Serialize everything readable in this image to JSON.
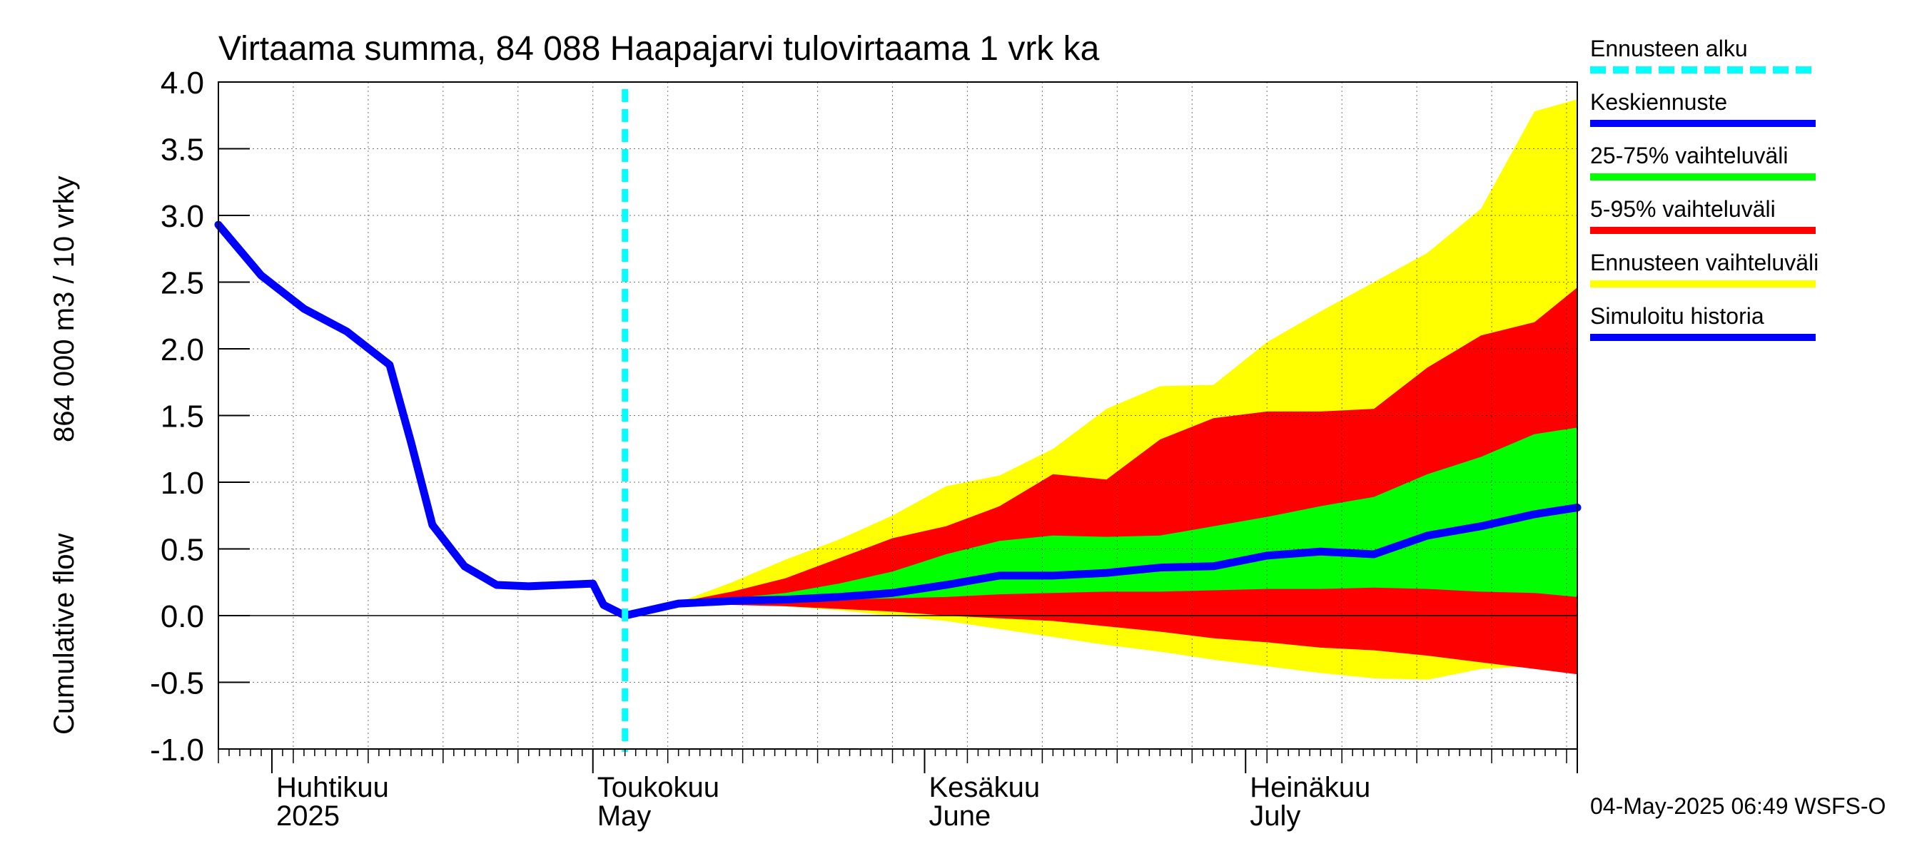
{
  "chart_data": {
    "type": "area",
    "title": "Virtaama summa, 84 088 Haapajarvi tulovirtaama 1 vrk ka",
    "ylabel_line1": "864 000 m3 / 10 vrky",
    "ylabel_line2": "Cumulative flow",
    "ylim": [
      -1.0,
      4.0
    ],
    "y_ticks": [
      "4.0",
      "3.5",
      "3.0",
      "2.5",
      "2.0",
      "1.5",
      "1.0",
      "0.5",
      "0.0",
      "-0.5",
      "-1.0"
    ],
    "xlim": [
      "2025-03-27",
      "2025-08-01"
    ],
    "month_labels": [
      {
        "date": "2025-04-01",
        "line1": "Huhtikuu",
        "line2": "2025"
      },
      {
        "date": "2025-05-01",
        "line1": "Toukokuu",
        "line2": "May"
      },
      {
        "date": "2025-06-01",
        "line1": "Kesäkuu",
        "line2": "June"
      },
      {
        "date": "2025-07-01",
        "line1": "Heinäkuu",
        "line2": "July"
      }
    ],
    "forecast_start": "2025-05-04",
    "grid": true,
    "legend_position": "right",
    "series": [
      {
        "name": "Ennusteen vaihteluväli",
        "kind": "band",
        "color": "#ffff00",
        "x": [
          "2025-05-04",
          "2025-05-09",
          "2025-05-14",
          "2025-05-19",
          "2025-05-24",
          "2025-05-29",
          "2025-06-03",
          "2025-06-08",
          "2025-06-13",
          "2025-06-18",
          "2025-06-23",
          "2025-06-28",
          "2025-07-03",
          "2025-07-08",
          "2025-07-13",
          "2025-07-18",
          "2025-07-23",
          "2025-07-28",
          "2025-08-01"
        ],
        "lower": [
          0.0,
          0.08,
          0.09,
          0.07,
          0.04,
          0.0,
          -0.04,
          -0.1,
          -0.16,
          -0.22,
          -0.27,
          -0.33,
          -0.38,
          -0.43,
          -0.47,
          -0.48,
          -0.4,
          -0.38,
          -0.41
        ],
        "upper": [
          0.0,
          0.1,
          0.25,
          0.42,
          0.57,
          0.75,
          0.97,
          1.05,
          1.25,
          1.55,
          1.72,
          1.73,
          2.05,
          2.28,
          2.5,
          2.72,
          3.05,
          3.78,
          3.87
        ]
      },
      {
        "name": "5-95% vaihteluväli",
        "kind": "band",
        "color": "#ff0000",
        "x": [
          "2025-05-04",
          "2025-05-09",
          "2025-05-14",
          "2025-05-19",
          "2025-05-24",
          "2025-05-29",
          "2025-06-03",
          "2025-06-08",
          "2025-06-13",
          "2025-06-18",
          "2025-06-23",
          "2025-06-28",
          "2025-07-03",
          "2025-07-08",
          "2025-07-13",
          "2025-07-18",
          "2025-07-23",
          "2025-07-28",
          "2025-08-01"
        ],
        "lower": [
          0.0,
          0.08,
          0.08,
          0.07,
          0.05,
          0.03,
          0.0,
          -0.02,
          -0.04,
          -0.08,
          -0.12,
          -0.17,
          -0.2,
          -0.24,
          -0.26,
          -0.3,
          -0.35,
          -0.4,
          -0.44
        ],
        "upper": [
          0.0,
          0.1,
          0.18,
          0.28,
          0.43,
          0.58,
          0.67,
          0.82,
          1.06,
          1.02,
          1.32,
          1.48,
          1.53,
          1.53,
          1.55,
          1.86,
          2.1,
          2.2,
          2.46
        ]
      },
      {
        "name": "25-75% vaihteluväli",
        "kind": "band",
        "color": "#00ff00",
        "x": [
          "2025-05-04",
          "2025-05-09",
          "2025-05-14",
          "2025-05-19",
          "2025-05-24",
          "2025-05-29",
          "2025-06-03",
          "2025-06-08",
          "2025-06-13",
          "2025-06-18",
          "2025-06-23",
          "2025-06-28",
          "2025-07-03",
          "2025-07-08",
          "2025-07-13",
          "2025-07-18",
          "2025-07-23",
          "2025-07-28",
          "2025-08-01"
        ],
        "lower": [
          0.0,
          0.09,
          0.1,
          0.11,
          0.12,
          0.13,
          0.14,
          0.16,
          0.17,
          0.18,
          0.18,
          0.19,
          0.2,
          0.2,
          0.21,
          0.2,
          0.18,
          0.17,
          0.14
        ],
        "upper": [
          0.0,
          0.1,
          0.13,
          0.17,
          0.24,
          0.33,
          0.46,
          0.56,
          0.6,
          0.59,
          0.6,
          0.67,
          0.74,
          0.82,
          0.89,
          1.06,
          1.19,
          1.36,
          1.41
        ]
      },
      {
        "name": "Keskiennuste",
        "kind": "line",
        "color": "#0000ff",
        "x": [
          "2025-05-04",
          "2025-05-09",
          "2025-05-14",
          "2025-05-19",
          "2025-05-24",
          "2025-05-29",
          "2025-06-03",
          "2025-06-08",
          "2025-06-13",
          "2025-06-18",
          "2025-06-23",
          "2025-06-28",
          "2025-07-03",
          "2025-07-08",
          "2025-07-13",
          "2025-07-18",
          "2025-07-23",
          "2025-07-28",
          "2025-08-01"
        ],
        "values": [
          0.0,
          0.09,
          0.11,
          0.12,
          0.14,
          0.17,
          0.23,
          0.3,
          0.3,
          0.32,
          0.36,
          0.37,
          0.45,
          0.48,
          0.46,
          0.6,
          0.67,
          0.76,
          0.81
        ]
      },
      {
        "name": "Simuloitu historia",
        "kind": "line",
        "color": "#0000ff",
        "x": [
          "2025-03-27",
          "2025-03-31",
          "2025-04-04",
          "2025-04-08",
          "2025-04-12",
          "2025-04-14",
          "2025-04-16",
          "2025-04-19",
          "2025-04-22",
          "2025-04-25",
          "2025-04-28",
          "2025-05-01",
          "2025-05-02",
          "2025-05-04"
        ],
        "values": [
          2.93,
          2.55,
          2.3,
          2.13,
          1.88,
          1.3,
          0.68,
          0.37,
          0.23,
          0.22,
          0.23,
          0.24,
          0.08,
          0.0
        ]
      }
    ],
    "legend": [
      {
        "label": "Ennusteen alku",
        "color": "#00ffff",
        "style": "dashed"
      },
      {
        "label": "Keskiennuste",
        "color": "#0000ff",
        "style": "solid"
      },
      {
        "label": "25-75% vaihteluväli",
        "color": "#00ff00",
        "style": "solid"
      },
      {
        "label": "5-95% vaihteluväli",
        "color": "#ff0000",
        "style": "solid"
      },
      {
        "label": "Ennusteen vaihteluväli",
        "color": "#ffff00",
        "style": "solid"
      },
      {
        "label": "Simuloitu historia",
        "color": "#0000ff",
        "style": "solid"
      }
    ]
  },
  "footer": {
    "timestamp": "04-May-2025 06:49 WSFS-O"
  }
}
